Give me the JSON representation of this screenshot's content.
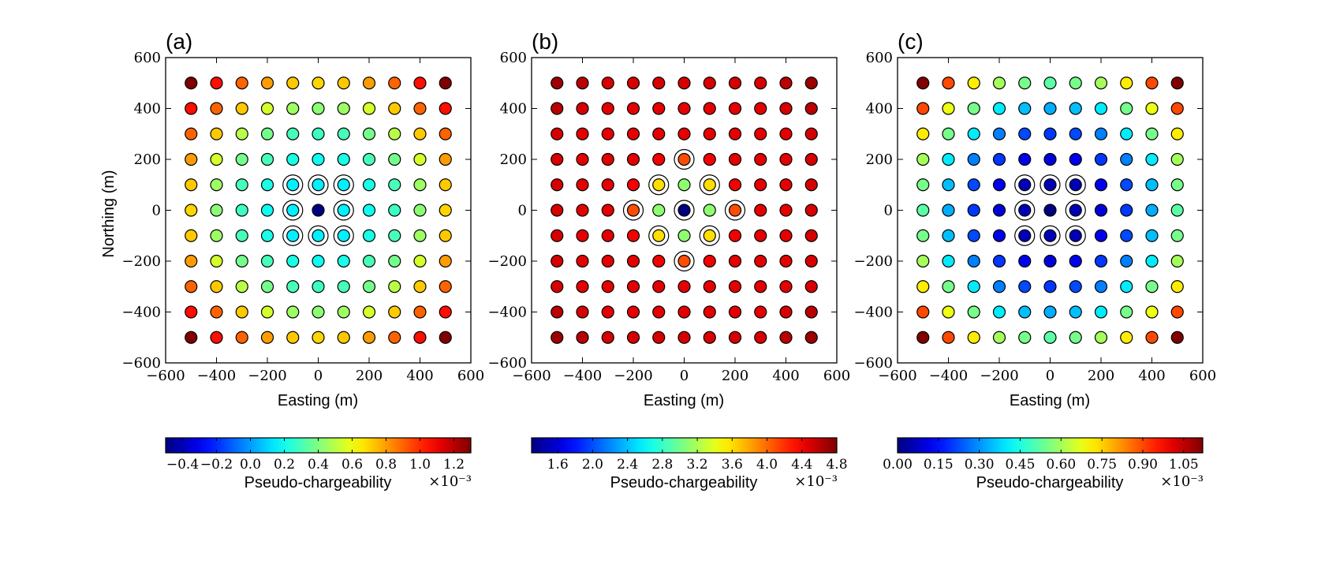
{
  "figure": {
    "panels": [
      {
        "label": "(a)",
        "ylabel": "Northing (m)",
        "xlabel": "Easting (m)"
      },
      {
        "label": "(b)",
        "ylabel": "",
        "xlabel": "Easting (m)"
      },
      {
        "label": "(c)",
        "ylabel": "",
        "xlabel": "Easting (m)"
      }
    ],
    "colorbars": [
      {
        "label": "Pseudo-chargeability",
        "multiplier": "×10⁻³",
        "ticks": [
          "−0.4",
          "−0.2",
          "0.0",
          "0.2",
          "0.4",
          "0.6",
          "0.8",
          "1.0",
          "1.2"
        ]
      },
      {
        "label": "Pseudo-chargeability",
        "multiplier": "×10⁻³",
        "ticks": [
          "1.6",
          "2.0",
          "2.4",
          "2.8",
          "3.2",
          "3.6",
          "4.0",
          "4.4",
          "4.8"
        ]
      },
      {
        "label": "Pseudo-chargeability",
        "multiplier": "×10⁻³",
        "ticks": [
          "0.00",
          "0.15",
          "0.30",
          "0.45",
          "0.60",
          "0.75",
          "0.90",
          "1.05"
        ]
      }
    ]
  },
  "chart_data": [
    {
      "type": "scatter",
      "title": "(a)",
      "xlabel": "Easting (m)",
      "ylabel": "Northing (m)",
      "xlim": [
        -600,
        600
      ],
      "ylim": [
        -600,
        600
      ],
      "ticks": [
        "−600",
        "−400",
        "−200",
        "0",
        "200",
        "400",
        "600"
      ],
      "tick_values": [
        -600,
        -400,
        -200,
        0,
        200,
        400,
        600
      ],
      "grid": false,
      "colormap": "jet",
      "colorbar_range": [
        -0.5,
        1.3
      ],
      "colorbar_ticks": [
        -0.4,
        -0.2,
        0.0,
        0.2,
        0.4,
        0.6,
        0.8,
        1.0,
        1.2
      ],
      "colorbar_label": "Pseudo-chargeability",
      "colorbar_multiplier": "×10⁻³",
      "x": [
        -500,
        -400,
        -300,
        -200,
        -100,
        0,
        100,
        200,
        300,
        400,
        500
      ],
      "y": [
        500,
        400,
        300,
        200,
        100,
        0,
        -100,
        -200,
        -300,
        -400,
        -500
      ],
      "values": [
        [
          1.3,
          1.05,
          0.9,
          0.8,
          0.72,
          0.7,
          0.72,
          0.8,
          0.9,
          1.05,
          1.3
        ],
        [
          1.05,
          0.9,
          0.72,
          0.55,
          0.45,
          0.42,
          0.45,
          0.55,
          0.72,
          0.9,
          1.05
        ],
        [
          0.9,
          0.72,
          0.5,
          0.38,
          0.3,
          0.28,
          0.3,
          0.38,
          0.5,
          0.72,
          0.9
        ],
        [
          0.8,
          0.55,
          0.38,
          0.3,
          0.22,
          0.2,
          0.22,
          0.3,
          0.38,
          0.55,
          0.8
        ],
        [
          0.72,
          0.45,
          0.3,
          0.22,
          0.15,
          0.15,
          0.15,
          0.22,
          0.3,
          0.45,
          0.72
        ],
        [
          0.7,
          0.42,
          0.28,
          0.2,
          0.15,
          -0.5,
          0.15,
          0.2,
          0.28,
          0.42,
          0.7
        ],
        [
          0.72,
          0.45,
          0.3,
          0.22,
          0.15,
          0.15,
          0.15,
          0.22,
          0.3,
          0.45,
          0.72
        ],
        [
          0.8,
          0.55,
          0.38,
          0.3,
          0.22,
          0.2,
          0.22,
          0.3,
          0.38,
          0.55,
          0.8
        ],
        [
          0.9,
          0.72,
          0.5,
          0.38,
          0.3,
          0.28,
          0.3,
          0.38,
          0.5,
          0.72,
          0.9
        ],
        [
          1.05,
          0.9,
          0.72,
          0.55,
          0.45,
          0.42,
          0.45,
          0.55,
          0.72,
          0.9,
          1.05
        ],
        [
          1.3,
          1.05,
          0.9,
          0.8,
          0.72,
          0.7,
          0.72,
          0.8,
          0.9,
          1.05,
          1.3
        ]
      ],
      "ringed_points": [
        [
          -100,
          100
        ],
        [
          0,
          100
        ],
        [
          100,
          100
        ],
        [
          -100,
          0
        ],
        [
          100,
          0
        ],
        [
          -100,
          -100
        ],
        [
          0,
          -100
        ],
        [
          100,
          -100
        ]
      ]
    },
    {
      "type": "scatter",
      "title": "(b)",
      "xlabel": "Easting (m)",
      "ylabel": "",
      "xlim": [
        -600,
        600
      ],
      "ylim": [
        -600,
        600
      ],
      "ticks": [
        "−600",
        "−400",
        "−200",
        "0",
        "200",
        "400",
        "600"
      ],
      "tick_values": [
        -600,
        -400,
        -200,
        0,
        200,
        400,
        600
      ],
      "grid": false,
      "colormap": "jet",
      "colorbar_range": [
        1.3,
        4.8
      ],
      "colorbar_ticks": [
        1.6,
        2.0,
        2.4,
        2.8,
        3.2,
        3.6,
        4.0,
        4.4,
        4.8
      ],
      "colorbar_label": "Pseudo-chargeability",
      "colorbar_multiplier": "×10⁻³",
      "x": [
        -500,
        -400,
        -300,
        -200,
        -100,
        0,
        100,
        200,
        300,
        400,
        500
      ],
      "y": [
        500,
        400,
        300,
        200,
        100,
        0,
        -100,
        -200,
        -300,
        -400,
        -500
      ],
      "values": [
        [
          4.7,
          4.6,
          4.5,
          4.5,
          4.5,
          4.5,
          4.5,
          4.5,
          4.5,
          4.6,
          4.7
        ],
        [
          4.6,
          4.5,
          4.45,
          4.45,
          4.45,
          4.45,
          4.45,
          4.45,
          4.45,
          4.5,
          4.6
        ],
        [
          4.5,
          4.45,
          4.45,
          4.45,
          4.45,
          4.45,
          4.45,
          4.45,
          4.45,
          4.45,
          4.5
        ],
        [
          4.5,
          4.45,
          4.45,
          4.45,
          4.4,
          4.1,
          4.4,
          4.45,
          4.45,
          4.45,
          4.5
        ],
        [
          4.5,
          4.45,
          4.45,
          4.4,
          3.6,
          3.1,
          3.6,
          4.4,
          4.45,
          4.45,
          4.5
        ],
        [
          4.5,
          4.45,
          4.45,
          4.1,
          3.1,
          1.3,
          3.1,
          4.1,
          4.45,
          4.45,
          4.5
        ],
        [
          4.5,
          4.45,
          4.45,
          4.4,
          3.6,
          3.1,
          3.6,
          4.4,
          4.45,
          4.45,
          4.5
        ],
        [
          4.5,
          4.45,
          4.45,
          4.45,
          4.4,
          4.1,
          4.4,
          4.45,
          4.45,
          4.45,
          4.5
        ],
        [
          4.5,
          4.45,
          4.45,
          4.45,
          4.45,
          4.45,
          4.45,
          4.45,
          4.45,
          4.45,
          4.5
        ],
        [
          4.6,
          4.5,
          4.45,
          4.45,
          4.45,
          4.45,
          4.45,
          4.45,
          4.45,
          4.5,
          4.6
        ],
        [
          4.7,
          4.6,
          4.5,
          4.5,
          4.5,
          4.5,
          4.5,
          4.5,
          4.5,
          4.6,
          4.7
        ]
      ],
      "ringed_points": [
        [
          0,
          200
        ],
        [
          -100,
          100
        ],
        [
          100,
          100
        ],
        [
          -200,
          0
        ],
        [
          0,
          0
        ],
        [
          200,
          0
        ],
        [
          -100,
          -100
        ],
        [
          100,
          -100
        ],
        [
          0,
          -200
        ]
      ]
    },
    {
      "type": "scatter",
      "title": "(c)",
      "xlabel": "Easting (m)",
      "ylabel": "",
      "xlim": [
        -600,
        600
      ],
      "ylim": [
        -600,
        600
      ],
      "ticks": [
        "−600",
        "−400",
        "−200",
        "0",
        "200",
        "400",
        "600"
      ],
      "tick_values": [
        -600,
        -400,
        -200,
        0,
        200,
        400,
        600
      ],
      "grid": false,
      "colormap": "jet",
      "colorbar_range": [
        0.0,
        1.12
      ],
      "colorbar_ticks": [
        0.0,
        0.15,
        0.3,
        0.45,
        0.6,
        0.75,
        0.9,
        1.05
      ],
      "colorbar_label": "Pseudo-chargeability",
      "colorbar_multiplier": "×10⁻³",
      "x": [
        -500,
        -400,
        -300,
        -200,
        -100,
        0,
        100,
        200,
        300,
        400,
        500
      ],
      "y": [
        500,
        400,
        300,
        200,
        100,
        0,
        -100,
        -200,
        -300,
        -400,
        -500
      ],
      "values": [
        [
          1.12,
          0.9,
          0.72,
          0.6,
          0.55,
          0.52,
          0.55,
          0.6,
          0.72,
          0.9,
          1.12
        ],
        [
          0.9,
          0.68,
          0.55,
          0.4,
          0.35,
          0.33,
          0.35,
          0.4,
          0.55,
          0.68,
          0.9
        ],
        [
          0.72,
          0.55,
          0.4,
          0.28,
          0.22,
          0.2,
          0.22,
          0.28,
          0.4,
          0.55,
          0.72
        ],
        [
          0.6,
          0.4,
          0.28,
          0.2,
          0.12,
          0.1,
          0.12,
          0.2,
          0.28,
          0.4,
          0.6
        ],
        [
          0.55,
          0.35,
          0.22,
          0.12,
          0.06,
          0.06,
          0.06,
          0.12,
          0.22,
          0.35,
          0.55
        ],
        [
          0.52,
          0.33,
          0.2,
          0.1,
          0.06,
          0.0,
          0.06,
          0.1,
          0.2,
          0.33,
          0.52
        ],
        [
          0.55,
          0.35,
          0.22,
          0.12,
          0.06,
          0.06,
          0.06,
          0.12,
          0.22,
          0.35,
          0.55
        ],
        [
          0.6,
          0.4,
          0.28,
          0.2,
          0.12,
          0.1,
          0.12,
          0.2,
          0.28,
          0.4,
          0.6
        ],
        [
          0.72,
          0.55,
          0.4,
          0.28,
          0.22,
          0.2,
          0.22,
          0.28,
          0.4,
          0.55,
          0.72
        ],
        [
          0.9,
          0.68,
          0.55,
          0.4,
          0.35,
          0.33,
          0.35,
          0.4,
          0.55,
          0.68,
          0.9
        ],
        [
          1.12,
          0.9,
          0.72,
          0.6,
          0.55,
          0.52,
          0.55,
          0.6,
          0.72,
          0.9,
          1.12
        ]
      ],
      "ringed_points": [
        [
          -100,
          100
        ],
        [
          0,
          100
        ],
        [
          100,
          100
        ],
        [
          -100,
          0
        ],
        [
          100,
          0
        ],
        [
          -100,
          -100
        ],
        [
          0,
          -100
        ],
        [
          100,
          -100
        ]
      ]
    }
  ]
}
